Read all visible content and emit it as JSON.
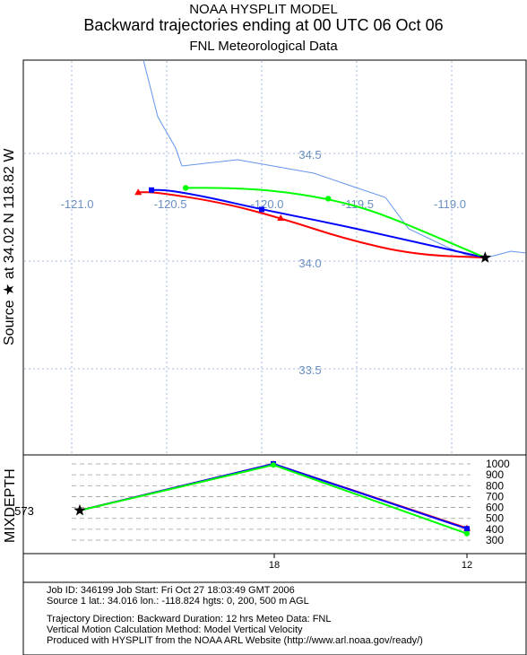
{
  "header": {
    "title": "NOAA HYSPLIT MODEL",
    "subtitle": "Backward trajectories ending at 00 UTC 06 Oct 06",
    "data_source": "FNL  Meteorological Data"
  },
  "map": {
    "side_label": "Source ★ at   34.02 N  118.82 W",
    "lon_labels": [
      "-121.0",
      "-120.5",
      "-120.0",
      "-119.5",
      "-119.0"
    ],
    "lat_labels": [
      "34.5",
      "34.0",
      "33.5"
    ]
  },
  "mixdepth": {
    "label": "MIXDEPTH",
    "start_value": "573",
    "y_ticks": [
      "1000",
      "900",
      "800",
      "700",
      "600",
      "500",
      "400",
      "300"
    ],
    "x_ticks": [
      "18",
      "12"
    ]
  },
  "info": {
    "line1": "Job ID: 346199        Job Start: Fri Oct 27 18:03:49 GMT 2006",
    "line2": "Source 1 lat.: 34.016   lon.: -118.824   hgts: 0, 200, 500 m AGL",
    "line3": "Trajectory Direction: Backward     Duration: 12 hrs     Meteo Data: FNL",
    "line4": "Vertical Motion Calculation Method: Model Vertical Velocity",
    "line5": "Produced with HYSPLIT from the NOAA ARL Website (http://www.arl.noaa.gov/ready/)"
  },
  "colors": {
    "red": "#ff0000",
    "blue": "#0000ff",
    "green": "#00ff00",
    "coast": "#6495ed",
    "grid": "#87a8d8",
    "grid_label": "#6a8fc0"
  },
  "chart_data": [
    {
      "type": "map",
      "source": {
        "lat": 34.016,
        "lon": -118.824
      },
      "series": [
        {
          "color": "red",
          "height_m": 0,
          "points": [
            [
              -118.824,
              34.016
            ],
            [
              -119.2,
              34.03
            ],
            [
              -119.55,
              34.1
            ],
            [
              -119.9,
              34.2
            ],
            [
              -120.2,
              34.27
            ],
            [
              -120.55,
              34.32
            ],
            [
              -120.65,
              34.32
            ]
          ]
        },
        {
          "color": "blue",
          "height_m": 200,
          "points": [
            [
              -118.824,
              34.016
            ],
            [
              -119.2,
              34.09
            ],
            [
              -119.6,
              34.17
            ],
            [
              -120.0,
              34.24
            ],
            [
              -120.3,
              34.3
            ],
            [
              -120.5,
              34.33
            ],
            [
              -120.58,
              34.33
            ]
          ]
        },
        {
          "color": "green",
          "height_m": 500,
          "points": [
            [
              -118.824,
              34.016
            ],
            [
              -119.1,
              34.12
            ],
            [
              -119.4,
              34.23
            ],
            [
              -119.65,
              34.29
            ],
            [
              -119.95,
              34.33
            ],
            [
              -120.2,
              34.34
            ],
            [
              -120.4,
              34.34
            ]
          ]
        }
      ]
    },
    {
      "type": "line",
      "x": [
        0,
        6,
        12
      ],
      "xlabel": "",
      "ylabel": "MIXDEPTH",
      "ylim": [
        300,
        1000
      ],
      "series": [
        {
          "color": "red",
          "values": [
            573,
            1000,
            410
          ]
        },
        {
          "color": "blue",
          "values": [
            573,
            1000,
            405
          ]
        },
        {
          "color": "green",
          "values": [
            573,
            990,
            360
          ]
        }
      ]
    }
  ]
}
